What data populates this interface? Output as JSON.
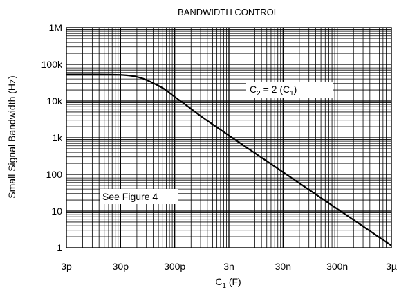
{
  "chart_data": {
    "type": "line",
    "title": "BANDWIDTH CONTROL",
    "xlabel": {
      "main": "C",
      "sub": "1",
      "tail": " (F)"
    },
    "ylabel": "Small Signal Bandwidth (Hz)",
    "x_scale": "log",
    "y_scale": "log",
    "xlim": [
      3e-12,
      3e-06
    ],
    "ylim": [
      1,
      1000000
    ],
    "x_ticks": [
      {
        "value": 3e-12,
        "label": "3p"
      },
      {
        "value": 3e-11,
        "label": "30p"
      },
      {
        "value": 3e-10,
        "label": "300p"
      },
      {
        "value": 3e-09,
        "label": "3n"
      },
      {
        "value": 3e-08,
        "label": "30n"
      },
      {
        "value": 3e-07,
        "label": "300n"
      },
      {
        "value": 3e-06,
        "label": "3µ"
      }
    ],
    "y_ticks": [
      {
        "value": 1,
        "label": "1"
      },
      {
        "value": 10,
        "label": "10"
      },
      {
        "value": 100,
        "label": "100"
      },
      {
        "value": 1000,
        "label": "1k"
      },
      {
        "value": 10000,
        "label": "10k"
      },
      {
        "value": 100000,
        "label": "100k"
      },
      {
        "value": 1000000,
        "label": "1M"
      }
    ],
    "grid": true,
    "series": [
      {
        "points": [
          [
            3e-12,
            53000
          ],
          [
            1e-11,
            53000
          ],
          [
            2e-11,
            52500
          ],
          [
            3e-11,
            51500
          ],
          [
            4.5e-11,
            49000
          ],
          [
            7e-11,
            43000
          ],
          [
            1e-10,
            35000
          ],
          [
            1.5e-10,
            26000
          ],
          [
            2e-10,
            20500
          ],
          [
            3e-10,
            13000
          ],
          [
            5e-10,
            7500
          ],
          [
            1e-09,
            3500
          ],
          [
            3e-09,
            1150
          ],
          [
            3e-08,
            115
          ],
          [
            3e-07,
            11.5
          ],
          [
            3e-06,
            1.15
          ]
        ]
      }
    ],
    "annotations": [
      {
        "type": "formula",
        "parts": [
          "C",
          "2",
          " = 2 (C",
          "1",
          ")"
        ]
      },
      {
        "type": "text",
        "text": "See Figure 4"
      }
    ]
  }
}
